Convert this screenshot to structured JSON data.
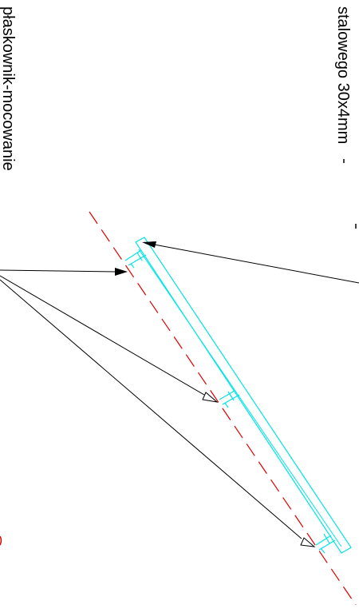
{
  "labels": {
    "flat_bar_steel": "stalowego 30x4mm",
    "flat_bar_mounting": "płaskownik-mocowanie"
  },
  "colors": {
    "profile": "#00e5e5",
    "axis": "#e00000",
    "leader": "#000000",
    "background": "#ffffff"
  }
}
